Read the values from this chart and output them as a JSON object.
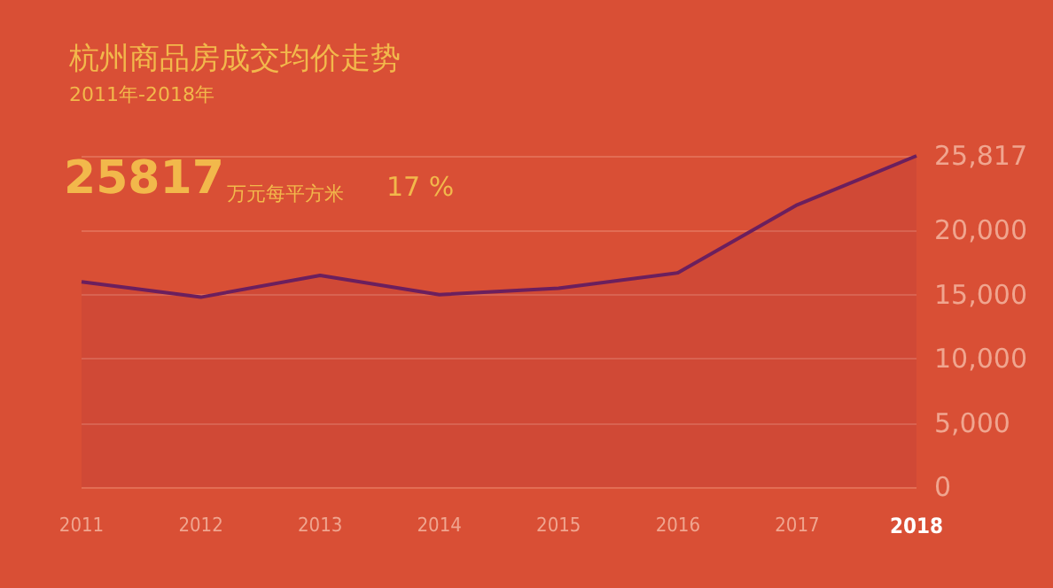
{
  "chart_data": {
    "type": "area",
    "title": "杭州商品房成交均价走势",
    "subtitle": "2011年-2018年",
    "annotations": [
      "25817",
      "万元每平方米",
      "17 %"
    ],
    "categories": [
      "2011",
      "2012",
      "2013",
      "2014",
      "2015",
      "2016",
      "2017",
      "2018"
    ],
    "series": [
      {
        "color": "#6b1f5e",
        "values": [
          16000,
          14800,
          16500,
          15000,
          15500,
          16700,
          22000,
          25817
        ]
      }
    ],
    "ylim": [
      0,
      25817
    ],
    "yticks": [
      0,
      {
        "value": 5000,
        "label": "5,000"
      },
      {
        "value": 10000,
        "label": "10,000"
      },
      {
        "value": 15000,
        "label": "15,000"
      },
      {
        "value": 20000,
        "label": "20,000"
      },
      {
        "value": 25817,
        "label": "25,817"
      }
    ],
    "grid": "y",
    "marker": "none",
    "line_style": "solid"
  }
}
